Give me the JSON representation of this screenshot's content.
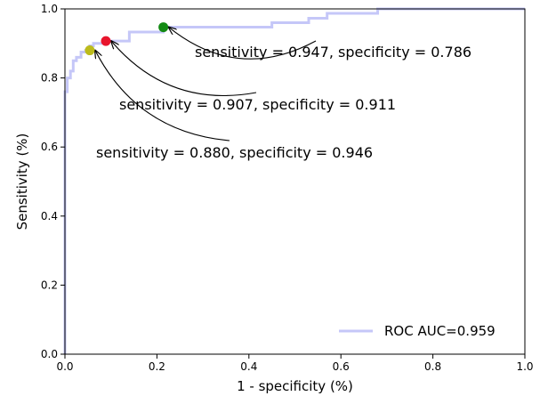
{
  "chart_data": {
    "type": "line",
    "xlabel": "1 - specificity (%)",
    "ylabel": "Sensitivity (%)",
    "xlim": [
      0.0,
      1.0
    ],
    "ylim": [
      0.0,
      1.0
    ],
    "xticks": [
      0.0,
      0.2,
      0.4,
      0.6,
      0.8,
      1.0
    ],
    "yticks": [
      0.0,
      0.2,
      0.4,
      0.6,
      0.8,
      1.0
    ],
    "xtick_labels": [
      "0.0",
      "0.2",
      "0.4",
      "0.6",
      "0.8",
      "1.0"
    ],
    "ytick_labels": [
      "0.0",
      "0.2",
      "0.4",
      "0.6",
      "0.8",
      "1.0"
    ],
    "grid": false,
    "legend_position": "lower-right",
    "series": [
      {
        "name": "ROC AUC=0.959",
        "color": "#c5c7f8",
        "x": [
          0,
          0,
          0.005,
          0.005,
          0.012,
          0.012,
          0.018,
          0.018,
          0.025,
          0.025,
          0.035,
          0.035,
          0.045,
          0.045,
          0.054,
          0.054,
          0.062,
          0.062,
          0.09,
          0.09,
          0.14,
          0.14,
          0.214,
          0.214,
          0.45,
          0.45,
          0.53,
          0.53,
          0.57,
          0.57,
          0.68,
          0.68,
          1.0
        ],
        "y": [
          0,
          0.76,
          0.76,
          0.8,
          0.8,
          0.82,
          0.82,
          0.85,
          0.85,
          0.86,
          0.86,
          0.875,
          0.875,
          0.88,
          0.88,
          0.893,
          0.893,
          0.9,
          0.9,
          0.907,
          0.907,
          0.933,
          0.933,
          0.947,
          0.947,
          0.96,
          0.96,
          0.973,
          0.973,
          0.987,
          0.987,
          1.0,
          1.0
        ]
      }
    ],
    "points": [
      {
        "x": 0.214,
        "y": 0.947,
        "color": "#138a13",
        "label": "sensitivity = 0.947, specificity = 0.786"
      },
      {
        "x": 0.089,
        "y": 0.907,
        "color": "#e8152d",
        "label": "sensitivity = 0.907, specificity = 0.911"
      },
      {
        "x": 0.054,
        "y": 0.88,
        "color": "#bcbb1b",
        "label": "sensitivity = 0.880, specificity = 0.946"
      }
    ]
  }
}
